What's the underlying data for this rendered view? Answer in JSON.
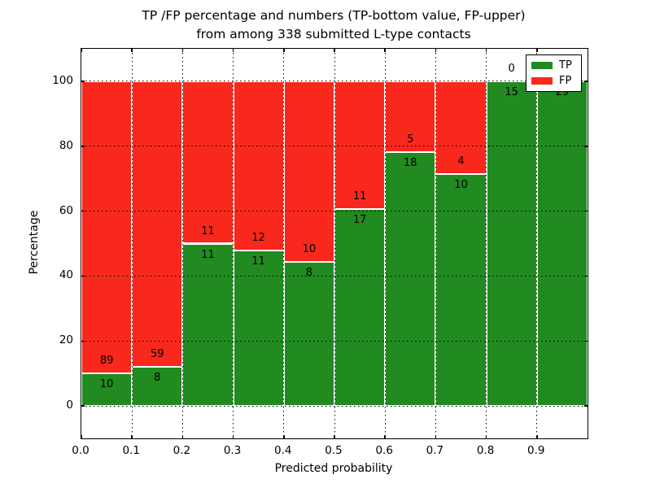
{
  "figure": {
    "title_line1": "TP /FP percentage and numbers (TP-bottom value, FP-upper)",
    "title_line2": "from among 338 submitted L-type contacts"
  },
  "chart_data": {
    "type": "bar",
    "stacked": true,
    "normalized": "each bin stacked to 100%",
    "title": "TP /FP percentage and numbers (TP-bottom value, FP-upper)\nfrom among 338 submitted L-type contacts",
    "xlabel": "Predicted probability",
    "ylabel": "Percentage",
    "total_contacts": 338,
    "bar_width": 0.1,
    "bin_starts": [
      0.0,
      0.1,
      0.2,
      0.3,
      0.4,
      0.5,
      0.6,
      0.7,
      0.8,
      0.9
    ],
    "series": [
      {
        "name": "TP",
        "color": "#218a21",
        "counts": [
          10,
          8,
          11,
          11,
          8,
          17,
          18,
          10,
          15,
          29
        ]
      },
      {
        "name": "FP",
        "color": "#f8281c",
        "counts": [
          89,
          59,
          11,
          12,
          10,
          11,
          5,
          4,
          0,
          0
        ]
      }
    ],
    "tp_percent_approx": [
      10.1,
      11.9,
      50.0,
      47.8,
      44.4,
      60.7,
      78.3,
      71.4,
      100.0,
      100.0
    ],
    "xlim": [
      0,
      1
    ],
    "ylim": [
      -10,
      110
    ],
    "xticks": {
      "values": [
        0,
        0.1,
        0.2,
        0.3,
        0.4,
        0.5,
        0.6,
        0.7,
        0.8,
        0.9
      ],
      "labels": [
        "0.0",
        "0.1",
        "0.2",
        "0.3",
        "0.4",
        "0.5",
        "0.6",
        "0.7",
        "0.8",
        "0.9"
      ]
    },
    "yticks": {
      "values": [
        0,
        20,
        40,
        60,
        80,
        100
      ],
      "labels": [
        "0",
        "20",
        "40",
        "60",
        "80",
        "100"
      ]
    },
    "grid": "dotted",
    "legend": {
      "position": "upper right",
      "entries": [
        "TP",
        "FP"
      ]
    }
  }
}
